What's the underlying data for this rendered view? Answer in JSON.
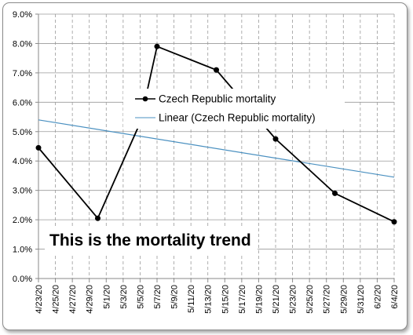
{
  "chart_data": {
    "type": "line",
    "categories": [
      "4/23/20",
      "4/25/20",
      "4/27/20",
      "4/29/20",
      "5/1/20",
      "5/3/20",
      "5/5/20",
      "5/7/20",
      "5/9/20",
      "5/11/20",
      "5/13/20",
      "5/15/20",
      "5/17/20",
      "5/19/20",
      "5/21/20",
      "5/23/20",
      "5/25/20",
      "5/27/20",
      "5/29/20",
      "5/31/20",
      "6/2/20",
      "6/4/20"
    ],
    "y_tick_labels": [
      "0.0%",
      "1.0%",
      "2.0%",
      "3.0%",
      "4.0%",
      "5.0%",
      "6.0%",
      "7.0%",
      "8.0%",
      "9.0%"
    ],
    "ylim": [
      0,
      9
    ],
    "grid": true,
    "series": [
      {
        "name": "Czech Republic mortality",
        "color": "#000000",
        "x": [
          "4/23/20",
          "4/30/20",
          "5/5/20",
          "5/7/20",
          "5/14/20",
          "5/21/20",
          "5/28/20",
          "6/4/20"
        ],
        "values": [
          4.45,
          2.05,
          5.3,
          7.9,
          7.1,
          4.75,
          2.9,
          1.93
        ]
      },
      {
        "name": "Linear (Czech Republic mortality)",
        "color": "#4a90c0",
        "x": [
          "4/23/20",
          "6/4/20"
        ],
        "values": [
          5.4,
          3.45
        ]
      }
    ],
    "legend_position": "center",
    "annotation": "This is the mortality trend"
  }
}
